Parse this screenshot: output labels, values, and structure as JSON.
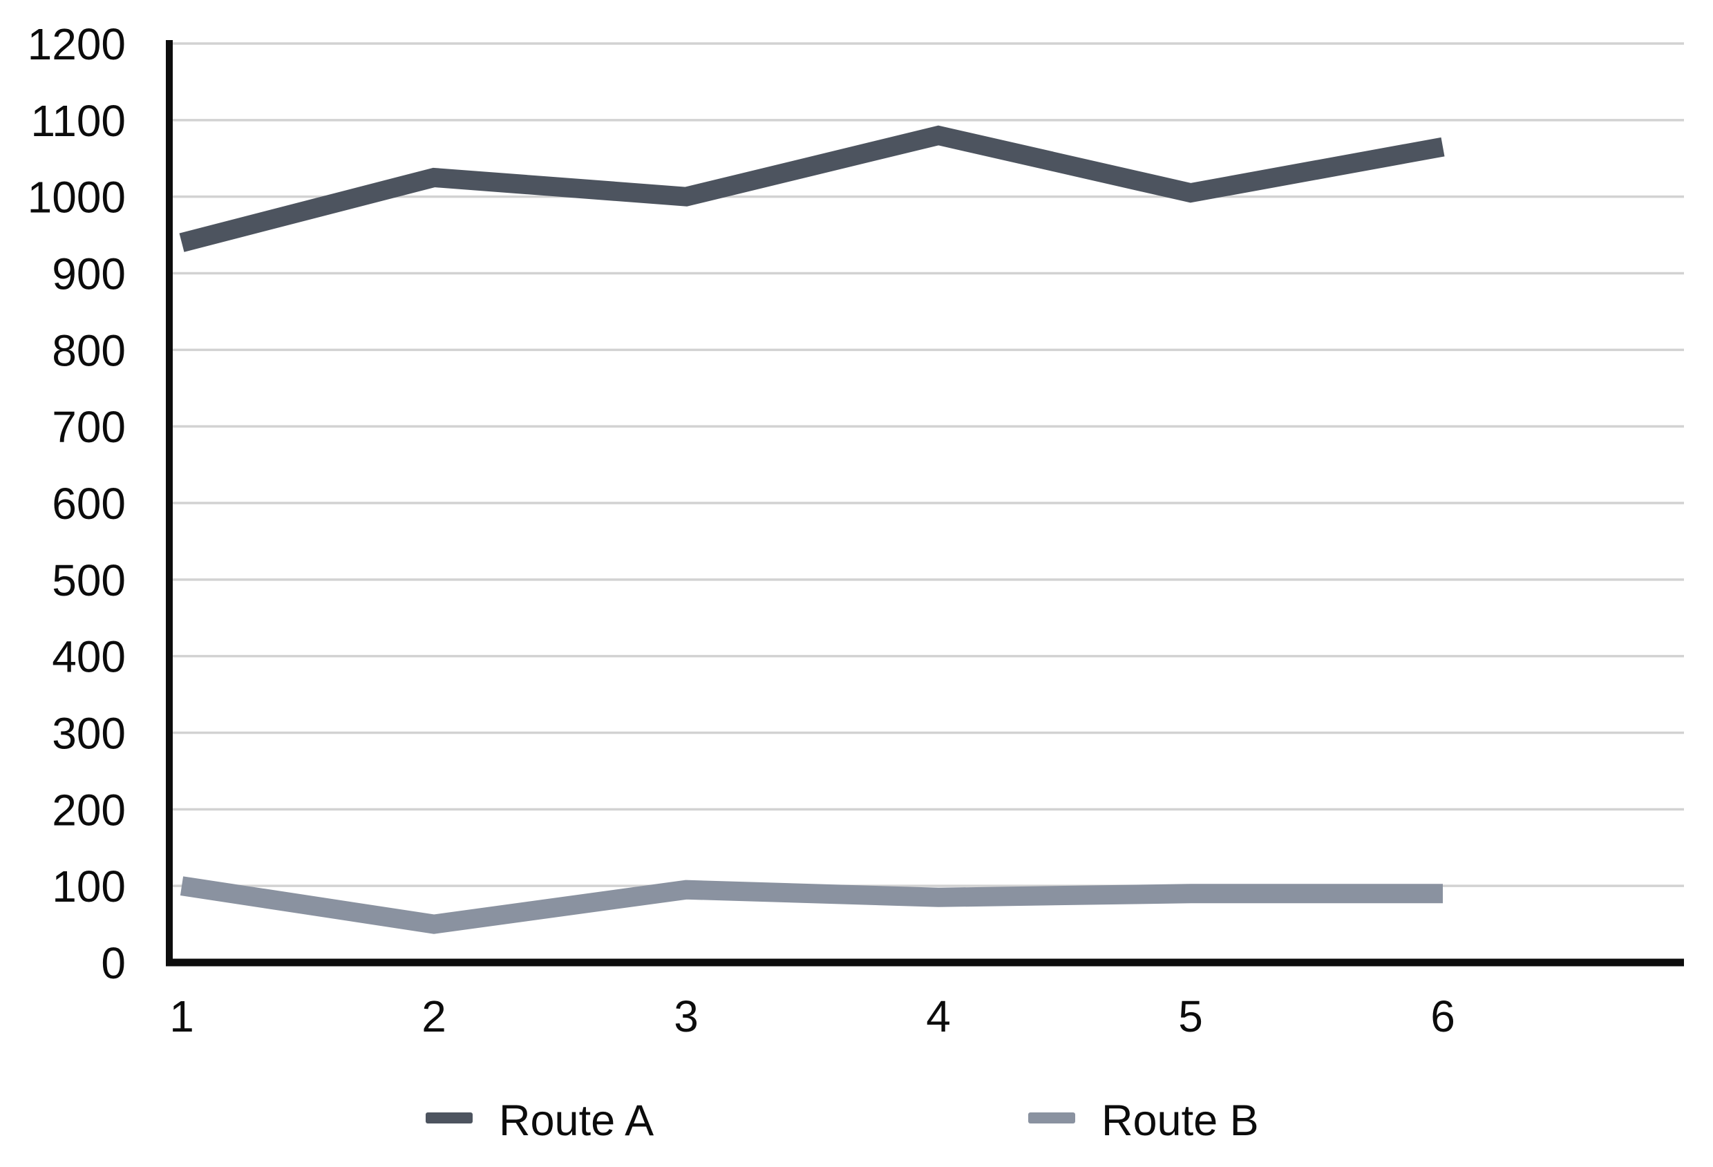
{
  "chart_data": {
    "type": "line",
    "title": "",
    "xlabel": "",
    "ylabel": "",
    "x": [
      1,
      2,
      3,
      4,
      5,
      6
    ],
    "x_tick_labels": [
      "1",
      "2",
      "3",
      "4",
      "5",
      "6"
    ],
    "y_ticks": [
      0,
      100,
      200,
      300,
      400,
      500,
      600,
      700,
      800,
      900,
      1000,
      1100,
      1200
    ],
    "y_tick_labels": [
      "0",
      "100",
      "200",
      "300",
      "400",
      "500",
      "600",
      "700",
      "800",
      "900",
      "1000",
      "1100",
      "1200"
    ],
    "ylim": [
      0,
      1200
    ],
    "grid": "horizontal",
    "legend_position": "bottom",
    "series": [
      {
        "name": "Route A",
        "color": "#4d545f",
        "values": [
          940,
          1025,
          1000,
          1080,
          1005,
          1065
        ]
      },
      {
        "name": "Route B",
        "color": "#8a92a0",
        "values": [
          100,
          50,
          95,
          85,
          90,
          90
        ]
      }
    ]
  },
  "colors": {
    "background": "#ffffff",
    "axis": "#0d0d0d",
    "gridline": "#d2d2d2",
    "tick_label": "#0c0c0c",
    "legend_label": "#0c0c0c"
  }
}
